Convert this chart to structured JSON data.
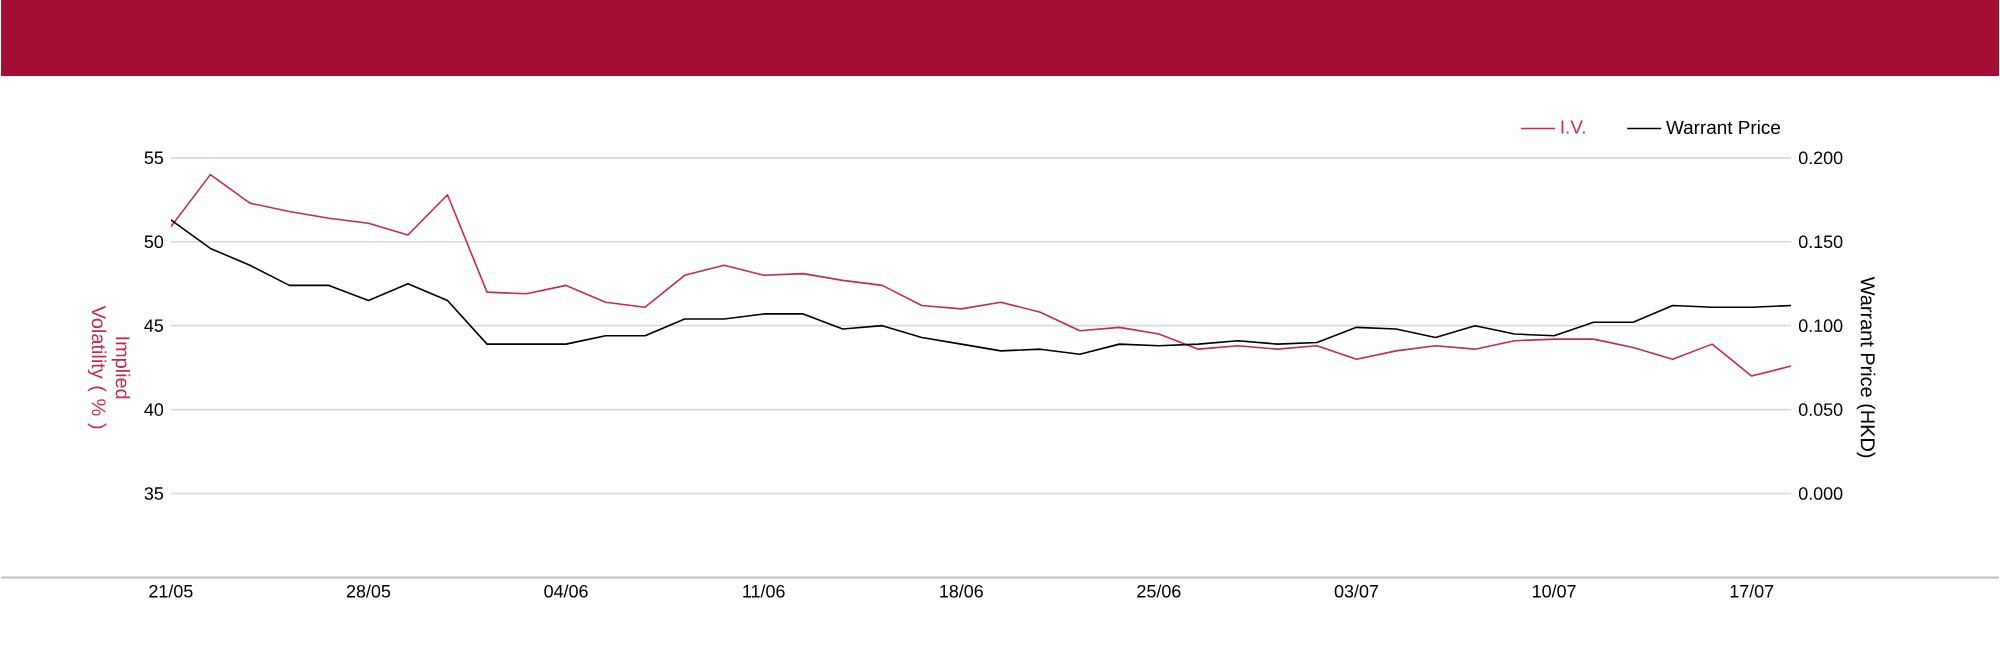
{
  "chart_data": {
    "type": "line",
    "categories": [
      "21/05",
      null,
      null,
      null,
      null,
      "28/05",
      null,
      null,
      null,
      null,
      "04/06",
      null,
      null,
      null,
      null,
      "11/06",
      null,
      null,
      null,
      null,
      "18/06",
      null,
      null,
      null,
      null,
      "25/06",
      null,
      null,
      null,
      null,
      "03/07",
      null,
      null,
      null,
      null,
      "10/07",
      null,
      null,
      null,
      null,
      "17/07",
      null
    ],
    "series": [
      {
        "name": "I.V.",
        "color": "#c42a52",
        "axis": "y",
        "values": [
          50.9,
          54.0,
          52.3,
          51.8,
          51.4,
          51.1,
          50.4,
          52.8,
          47.0,
          46.9,
          47.4,
          46.4,
          46.1,
          48.0,
          48.6,
          48.0,
          48.1,
          47.7,
          47.4,
          46.2,
          46.0,
          46.4,
          45.8,
          44.7,
          44.9,
          44.5,
          43.6,
          43.8,
          43.6,
          43.8,
          43.0,
          43.5,
          43.8,
          43.6,
          44.1,
          44.2,
          44.2,
          43.7,
          43.0,
          43.9,
          42.0,
          42.6
        ]
      },
      {
        "name": "Warrant Price",
        "color": "#000000",
        "axis": "y2",
        "values": [
          0.163,
          0.146,
          0.136,
          0.124,
          0.124,
          0.115,
          0.125,
          0.115,
          0.089,
          0.089,
          0.089,
          0.094,
          0.094,
          0.104,
          0.104,
          0.107,
          0.107,
          0.098,
          0.1,
          0.093,
          0.089,
          0.085,
          0.086,
          0.083,
          0.089,
          0.088,
          0.089,
          0.091,
          0.089,
          0.09,
          0.099,
          0.098,
          0.093,
          0.1,
          0.095,
          0.094,
          0.102,
          0.102,
          0.112,
          0.111,
          0.111,
          0.112
        ]
      }
    ],
    "ylabel": "Implied Volatility ( % )",
    "y2label": "Warrant Price (HKD)",
    "ylim": [
      30,
      55
    ],
    "yticks": [
      35,
      40,
      45,
      50,
      55
    ],
    "y2lim": [
      -0.05,
      0.2
    ],
    "y2ticks": [
      {
        "value": 0,
        "label": "0.000"
      },
      {
        "value": 0.05,
        "label": "0.050"
      },
      {
        "value": 0.1,
        "label": "0.100"
      },
      {
        "value": 0.15,
        "label": "0.150"
      },
      {
        "value": 0.2,
        "label": "0.200"
      }
    ],
    "grid": "y",
    "legend": "top right",
    "marker": "none",
    "line_style": "solid"
  }
}
